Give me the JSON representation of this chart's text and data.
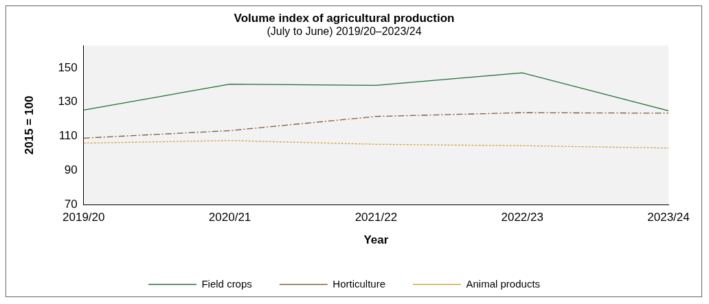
{
  "chart_data": {
    "type": "line",
    "title": "Volume index of agricultural production",
    "subtitle": "(July to June) 2019/20–2023/24",
    "xlabel": "Year",
    "ylabel": "2015 = 100",
    "categories": [
      "2019/20",
      "2020/21",
      "2021/22",
      "2022/23",
      "2023/24"
    ],
    "series": [
      {
        "name": "Field crops",
        "color": "#1e6b35",
        "line_style": "solid",
        "values": [
          125.3,
          140.5,
          139.8,
          147.1,
          124.9
        ]
      },
      {
        "name": "Horticulture",
        "color": "#7b5a3c",
        "line_style": "dashed",
        "values": [
          108.9,
          113.3,
          121.6,
          123.8,
          123.5
        ]
      },
      {
        "name": "Animal products",
        "color": "#d4a040",
        "line_style": "dotted",
        "values": [
          106,
          107.5,
          105.3,
          104.5,
          103.1
        ]
      }
    ],
    "ylim": [
      70,
      163
    ],
    "yticks": [
      70,
      90,
      110,
      130,
      150
    ],
    "grid": false,
    "legend": "bottom",
    "marker": "none"
  }
}
